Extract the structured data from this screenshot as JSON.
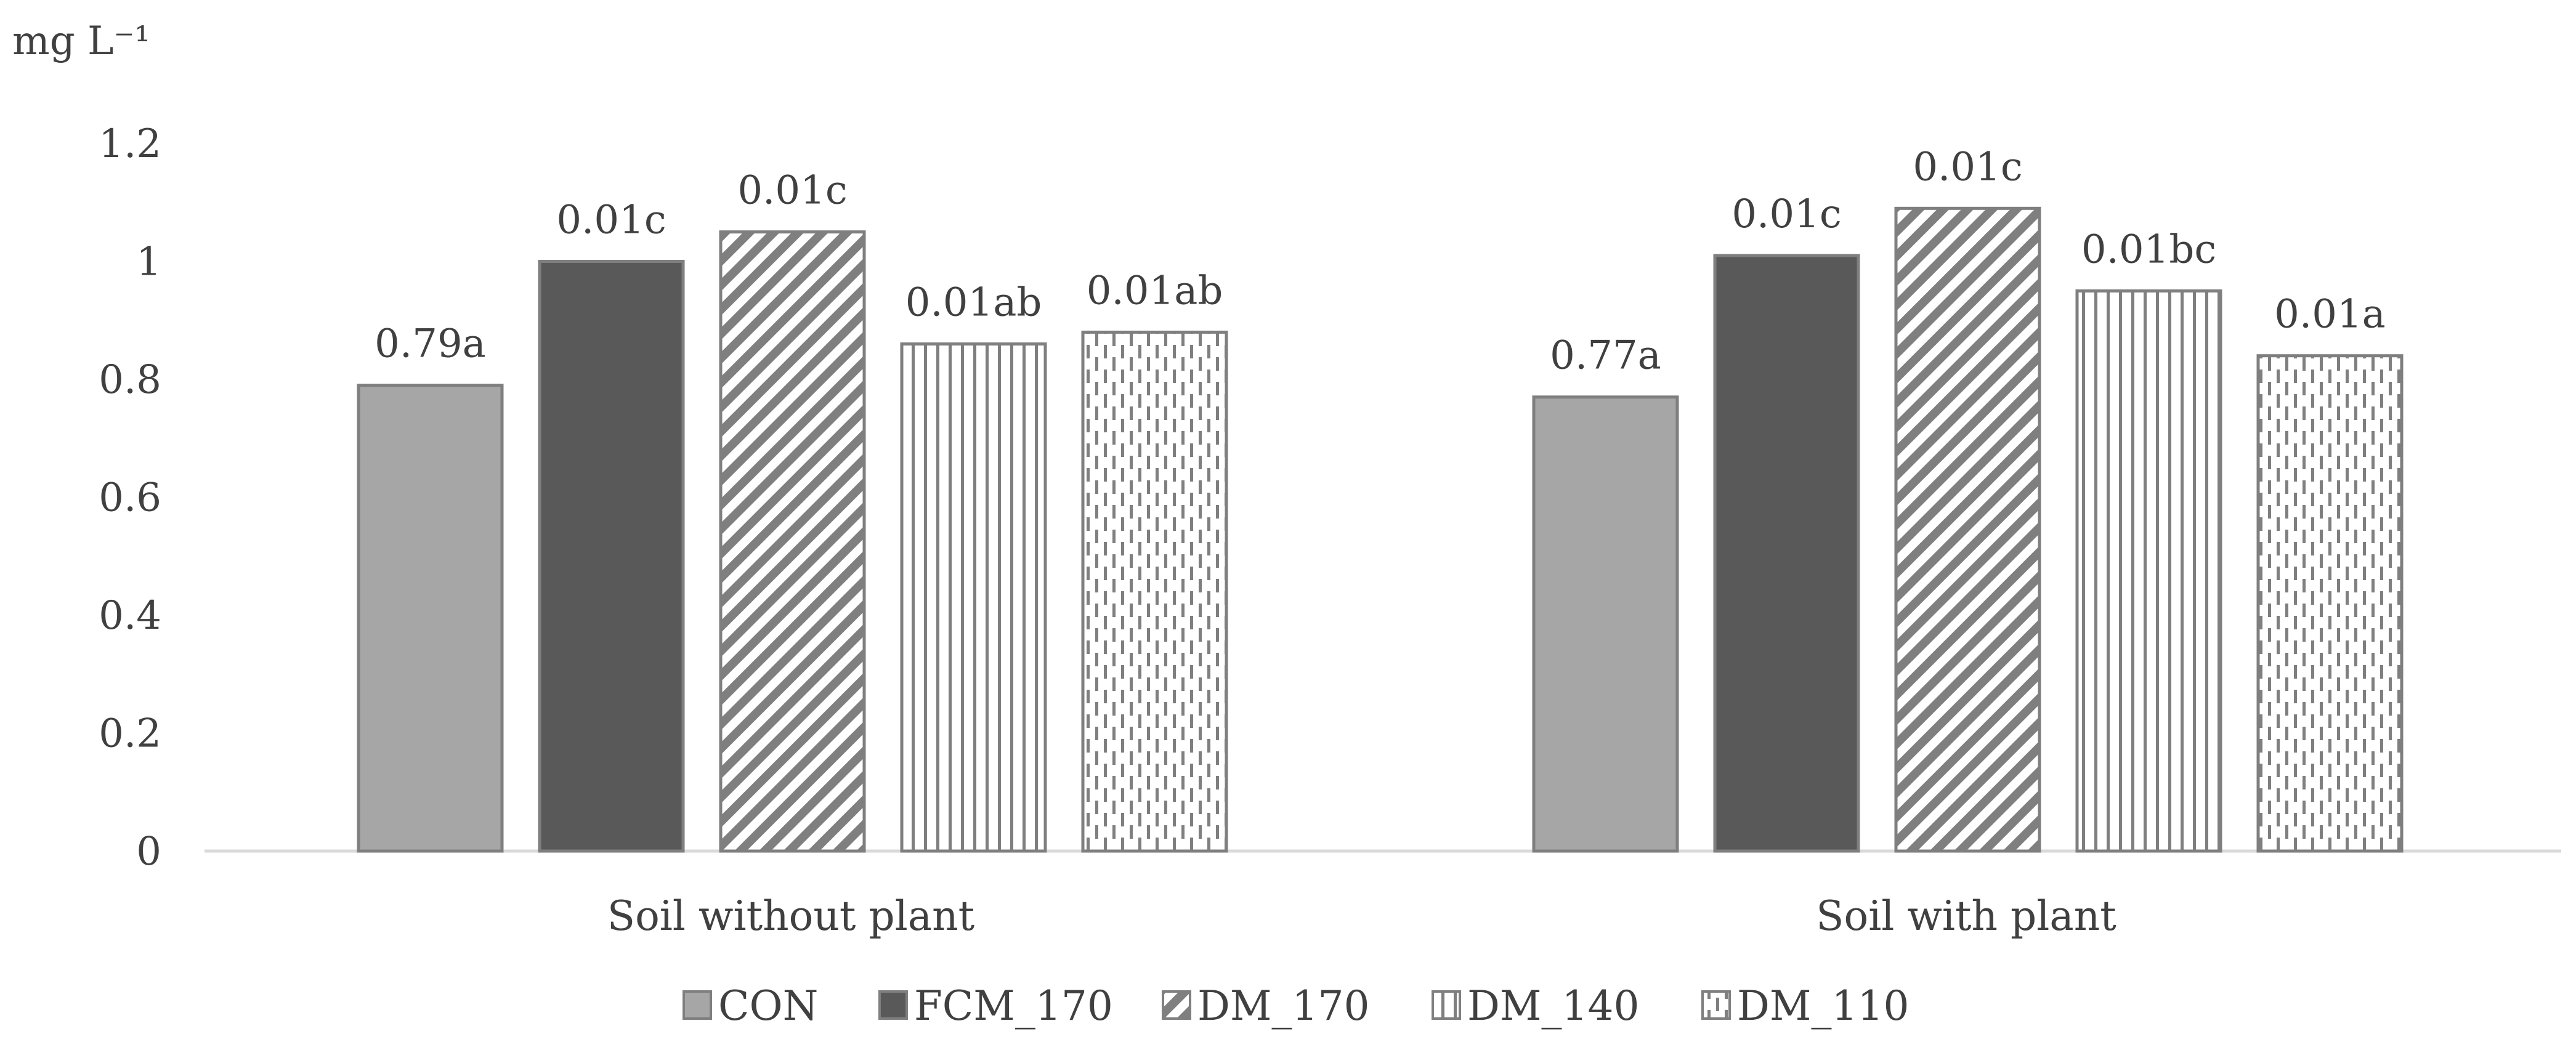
{
  "chart_data": {
    "type": "bar",
    "ylabel": "mg L⁻¹",
    "ylim": [
      0,
      1.2
    ],
    "yticks": [
      "0",
      "0.2",
      "0.4",
      "0.6",
      "0.8",
      "1",
      "1.2"
    ],
    "categories": [
      "Soil without plant",
      "Soil with plant"
    ],
    "grid": false,
    "legend_position": "bottom",
    "series": [
      {
        "name": "CON",
        "values": [
          0.79,
          0.77
        ],
        "labels": [
          "0.79a",
          "0.77a"
        ],
        "color": "#a6a6a6",
        "pattern": "solid-light"
      },
      {
        "name": "FCM_170",
        "values": [
          1.0,
          1.01
        ],
        "labels": [
          "0.01c",
          "0.01c"
        ],
        "color": "#595959",
        "pattern": "solid-dark"
      },
      {
        "name": "DM_170",
        "values": [
          1.05,
          1.09
        ],
        "labels": [
          "0.01c",
          "0.01c"
        ],
        "color": "#7f7f7f",
        "pattern": "diagonal"
      },
      {
        "name": "DM_140",
        "values": [
          0.86,
          0.95
        ],
        "labels": [
          "0.01ab",
          "0.01bc"
        ],
        "color": "#7f7f7f",
        "pattern": "vertical"
      },
      {
        "name": "DM_110",
        "values": [
          0.88,
          0.84
        ],
        "labels": [
          "0.01ab",
          "0.01a"
        ],
        "color": "#7f7f7f",
        "pattern": "dashed-vertical"
      }
    ]
  }
}
